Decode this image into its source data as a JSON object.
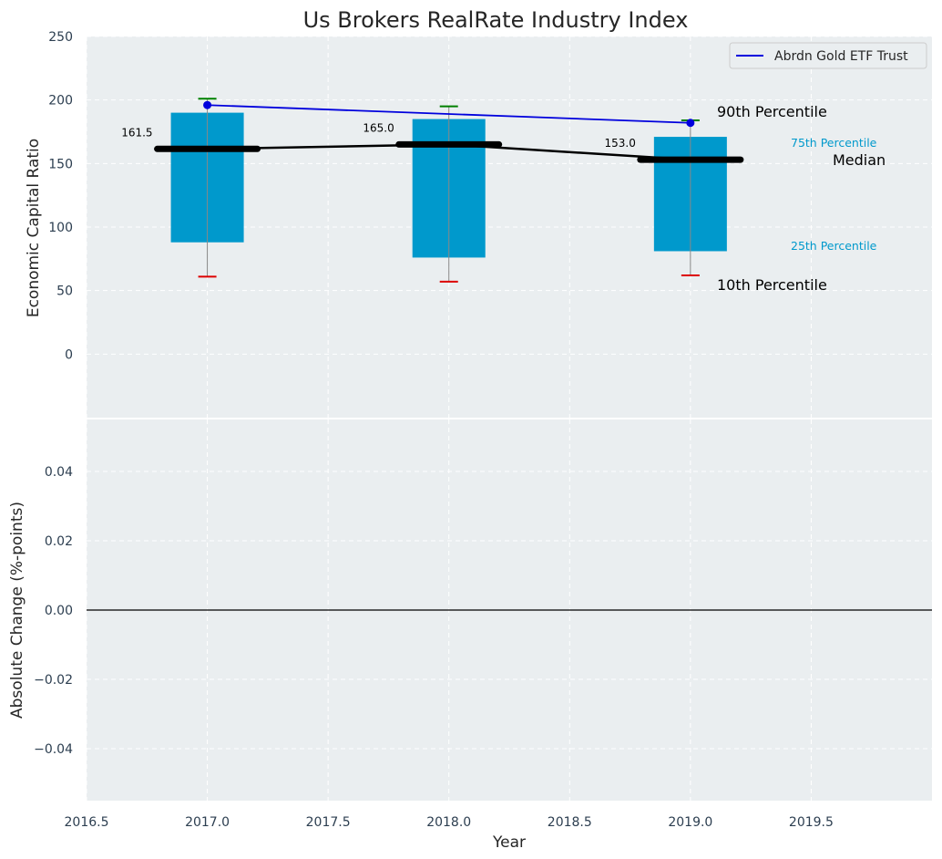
{
  "chart_data": [
    {
      "type": "bar",
      "title": "Us Brokers RealRate Industry Index",
      "ylabel": "Economic Capital Ratio",
      "xlim": [
        2016.5,
        2020.0
      ],
      "ylim": [
        -50,
        250
      ],
      "yticks": [
        0,
        50,
        100,
        150,
        200,
        250
      ],
      "grid": true,
      "legend_position": "top-right",
      "colors": {
        "box": "#0099cc",
        "median": "#000000",
        "company": "#0000dd",
        "p90_cap": "#008000",
        "p10_cap": "#dd0000",
        "whisker": "#888888"
      },
      "categories": [
        "2017.0",
        "2018.0",
        "2019.0"
      ],
      "x": [
        2017,
        2018,
        2019
      ],
      "boxes": {
        "p25": [
          88,
          76,
          81
        ],
        "p75": [
          190,
          185,
          171
        ],
        "p10": [
          61,
          57,
          62
        ],
        "p90": [
          201,
          195,
          184
        ]
      },
      "series": [
        {
          "name": "",
          "role": "median",
          "values": [
            161.5,
            165.0,
            153.0
          ]
        },
        {
          "name": "Abrdn Gold ETF Trust",
          "role": "company",
          "values": [
            196,
            null,
            182
          ]
        }
      ],
      "data_labels": [
        "161.5",
        "165.0",
        "153.0"
      ],
      "annotations": {
        "p90": "90th Percentile",
        "p75": "75th Percentile",
        "median": "Median",
        "p25": "25th Percentile",
        "p10": "10th Percentile"
      }
    },
    {
      "type": "line",
      "ylabel": "Absolute Change (%-points)",
      "xlabel": "Year",
      "xlim": [
        2016.5,
        2020.0
      ],
      "ylim": [
        -0.055,
        0.055
      ],
      "xticks": [
        "2016.5",
        "2017.0",
        "2017.5",
        "2018.0",
        "2018.5",
        "2019.0",
        "2019.5"
      ],
      "yticks": [
        "−0.04",
        "−0.02",
        "0.00",
        "0.02",
        "0.04"
      ],
      "grid": true,
      "series": [
        {
          "name": "",
          "role": "zero-line",
          "x": [
            2016.5,
            2020.0
          ],
          "values": [
            0,
            0
          ]
        }
      ]
    }
  ]
}
